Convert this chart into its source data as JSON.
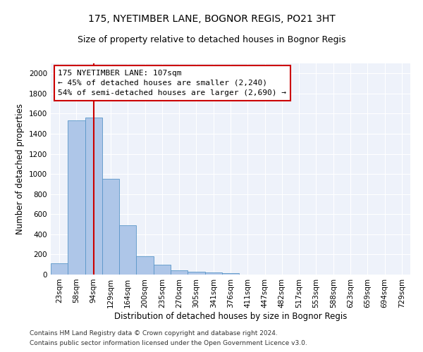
{
  "title": "175, NYETIMBER LANE, BOGNOR REGIS, PO21 3HT",
  "subtitle": "Size of property relative to detached houses in Bognor Regis",
  "xlabel": "Distribution of detached houses by size in Bognor Regis",
  "ylabel": "Number of detached properties",
  "bar_color": "#aec6e8",
  "bar_edge_color": "#5a96c8",
  "categories": [
    "23sqm",
    "58sqm",
    "94sqm",
    "129sqm",
    "164sqm",
    "200sqm",
    "235sqm",
    "270sqm",
    "305sqm",
    "341sqm",
    "376sqm",
    "411sqm",
    "447sqm",
    "482sqm",
    "517sqm",
    "553sqm",
    "588sqm",
    "623sqm",
    "659sqm",
    "694sqm",
    "729sqm"
  ],
  "values": [
    110,
    1530,
    1560,
    950,
    490,
    185,
    95,
    45,
    30,
    20,
    15,
    0,
    0,
    0,
    0,
    0,
    0,
    0,
    0,
    0,
    0
  ],
  "ylim": [
    0,
    2100
  ],
  "yticks": [
    0,
    200,
    400,
    600,
    800,
    1000,
    1200,
    1400,
    1600,
    1800,
    2000
  ],
  "vline_x_index": 2,
  "vline_color": "#cc0000",
  "annotation_line1": "175 NYETIMBER LANE: 107sqm",
  "annotation_line2": "← 45% of detached houses are smaller (2,240)",
  "annotation_line3": "54% of semi-detached houses are larger (2,690) →",
  "annotation_box_color": "#cc0000",
  "footnote1": "Contains HM Land Registry data © Crown copyright and database right 2024.",
  "footnote2": "Contains public sector information licensed under the Open Government Licence v3.0.",
  "background_color": "#eef2fa",
  "grid_color": "#ffffff",
  "title_fontsize": 10,
  "subtitle_fontsize": 9,
  "label_fontsize": 8.5,
  "tick_fontsize": 7.5,
  "annotation_fontsize": 8,
  "footnote_fontsize": 6.5
}
